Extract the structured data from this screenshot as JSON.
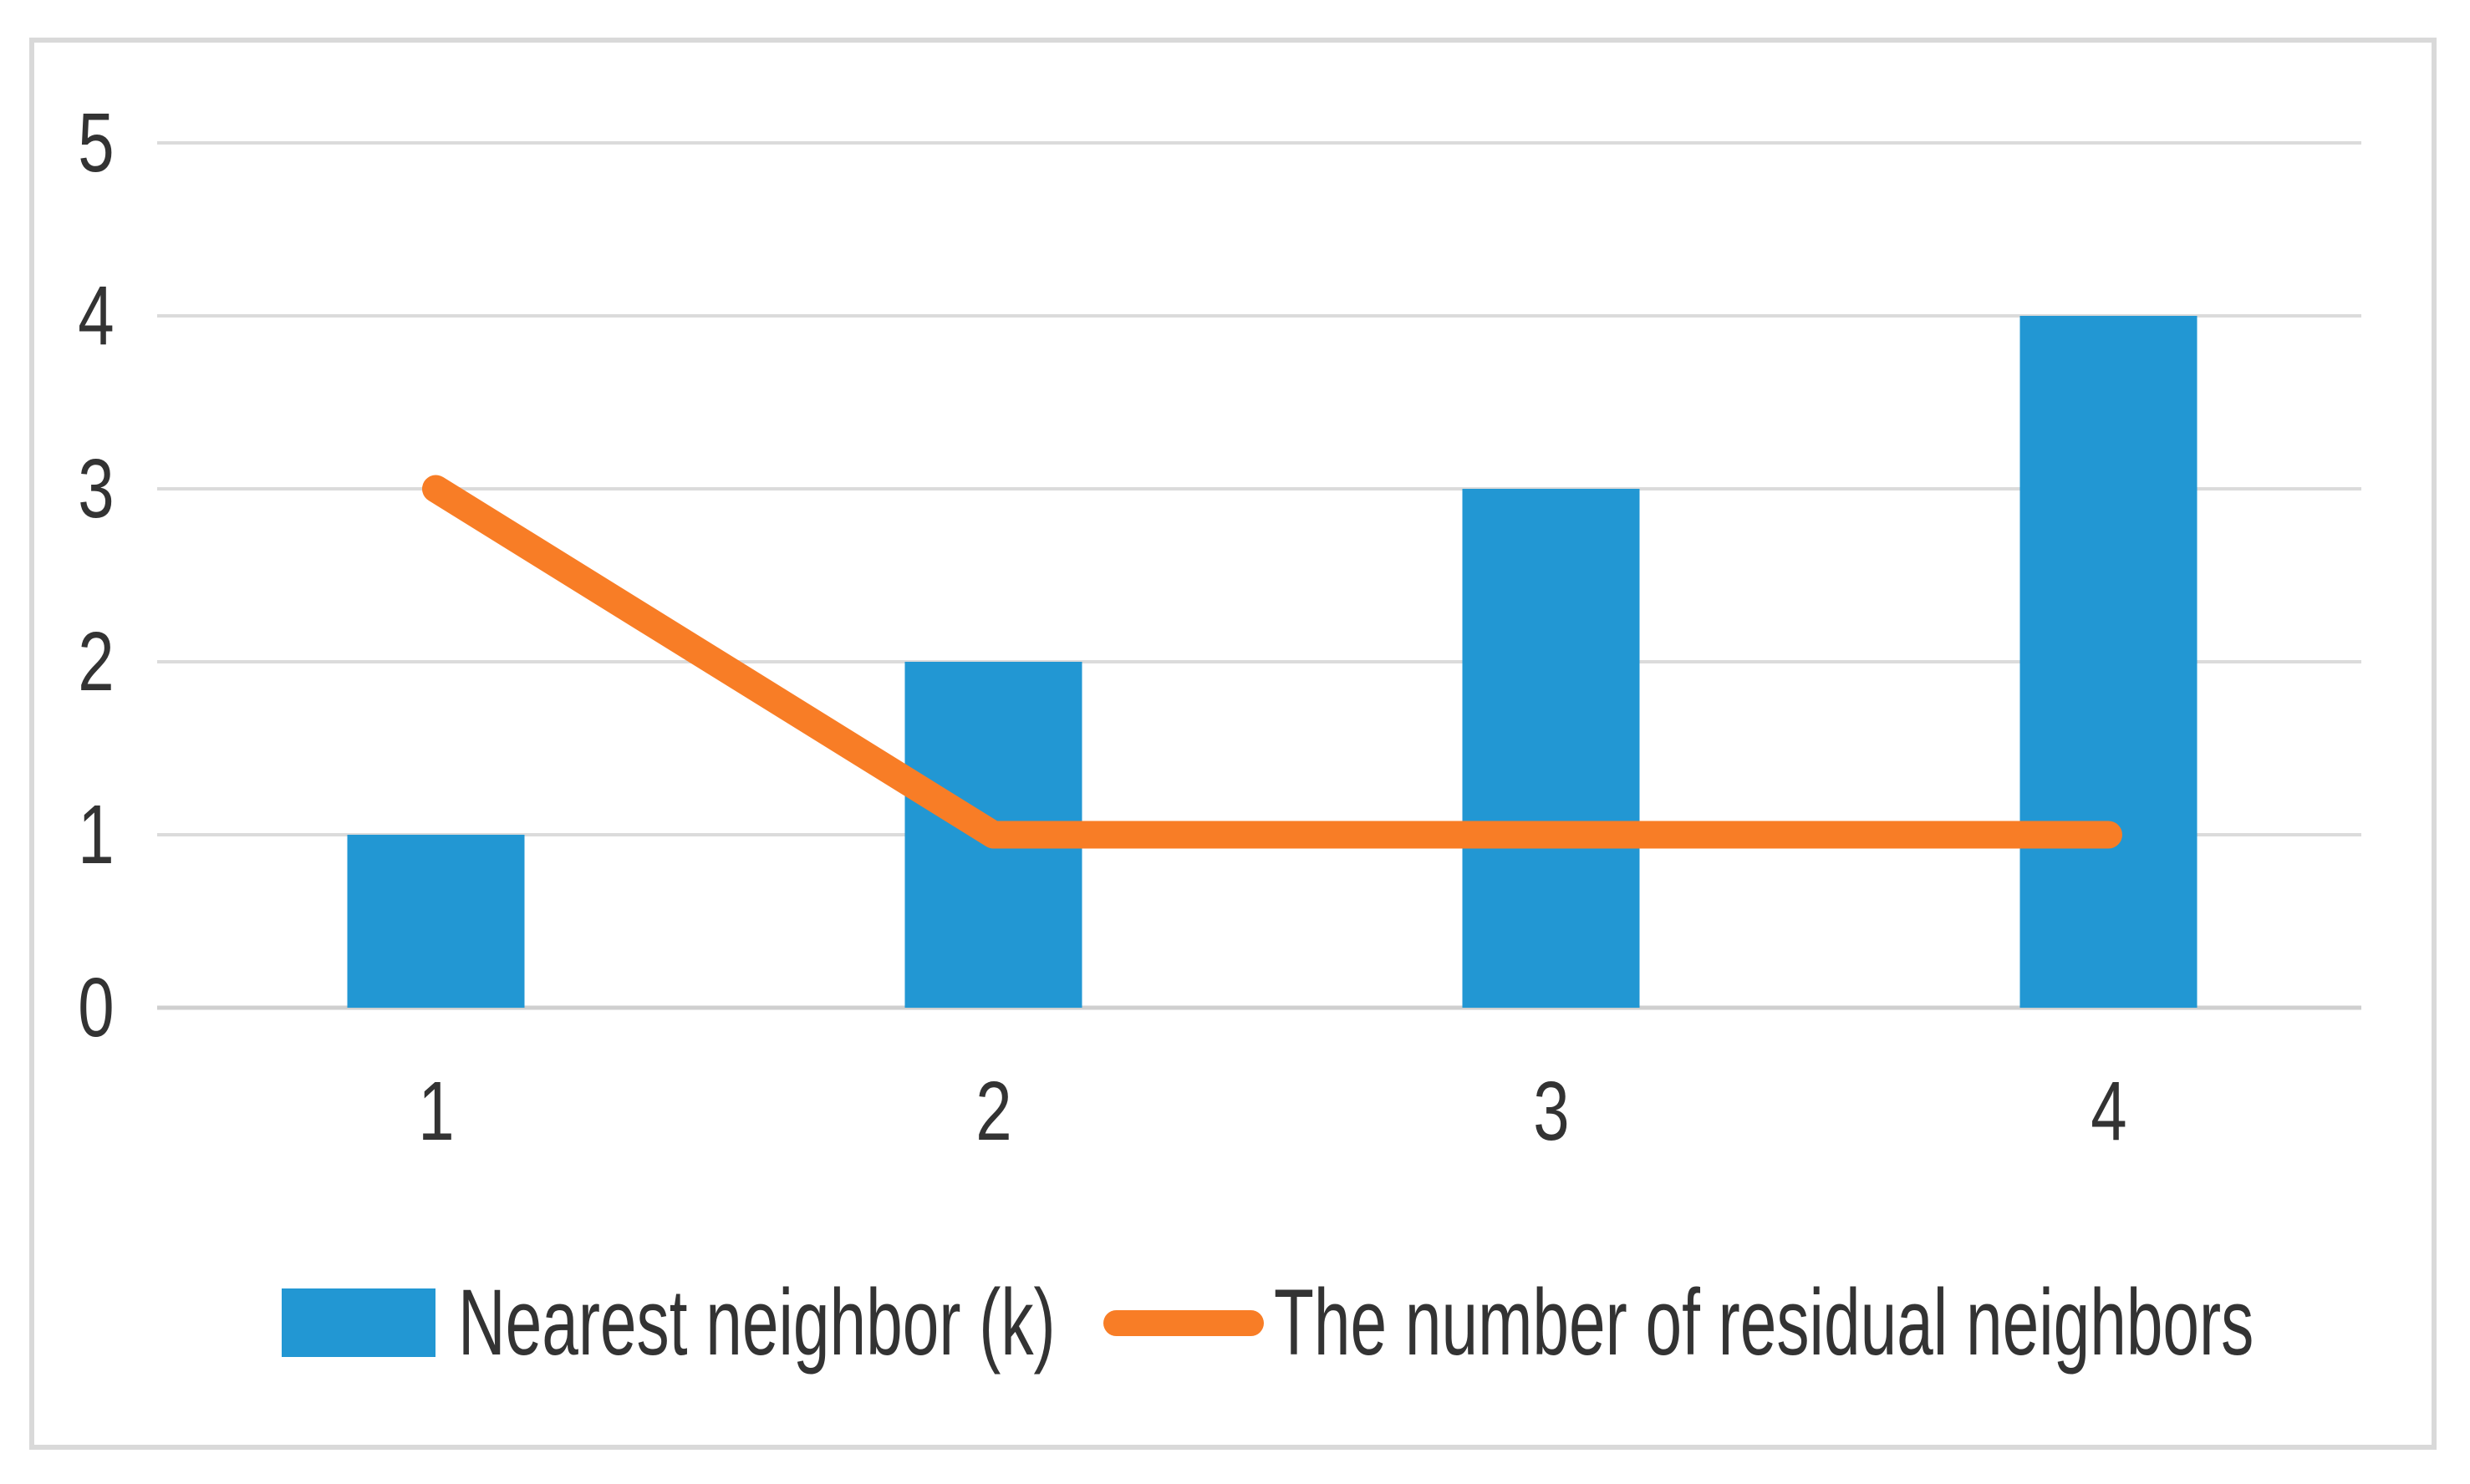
{
  "chart_data": {
    "type": "combo-bar-line",
    "title": "",
    "xlabel": "",
    "ylabel": "",
    "categories": [
      "1",
      "2",
      "3",
      "4"
    ],
    "series": [
      {
        "name": "Nearest neighbor (k)",
        "type": "bar",
        "values": [
          1,
          2,
          3,
          4
        ],
        "color": "#2297D3"
      },
      {
        "name": "The number of residual neighbors",
        "type": "line",
        "values": [
          3,
          1,
          1,
          1
        ],
        "color": "#F87D26"
      }
    ],
    "ylim": [
      0,
      5
    ],
    "yticks": [
      0,
      1,
      2,
      3,
      4,
      5
    ],
    "grid": true,
    "legend_position": "bottom"
  },
  "style": {
    "background": "#FFFFFF",
    "frame_border_color": "#D9D9D9",
    "gridline_color": "#DBDBDB",
    "axis_line_color": "#CFCFCF",
    "text_color": "#333333"
  }
}
